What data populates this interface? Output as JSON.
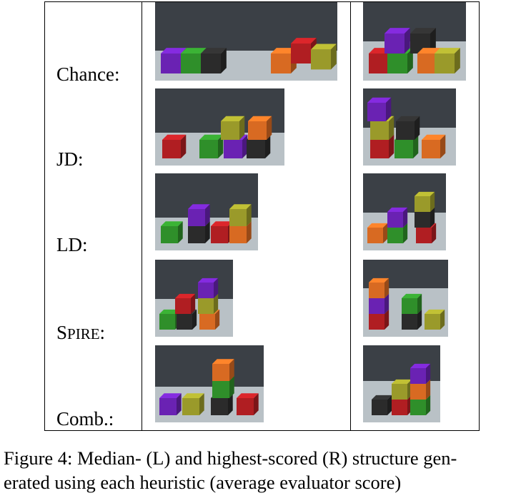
{
  "figure": {
    "rows": [
      {
        "key": "chance",
        "label": "Chance:",
        "median_image": {
          "description": "blocks scene",
          "cubes": [
            {
              "color": "#6a22b3"
            },
            {
              "color": "#2f8f2a"
            },
            {
              "color": "#2b2b2b"
            },
            {
              "color": "#d86a22"
            },
            {
              "color": "#b01e22"
            },
            {
              "color": "#9a9a2a"
            }
          ]
        },
        "highest_image": {
          "description": "blocks scene",
          "cubes": [
            {
              "color": "#b01e22"
            },
            {
              "color": "#2f8f2a"
            },
            {
              "color": "#6a22b3"
            },
            {
              "color": "#2b2b2b"
            },
            {
              "color": "#d86a22"
            },
            {
              "color": "#9a9a2a"
            }
          ]
        }
      },
      {
        "key": "jd",
        "label": "JD:",
        "median_image": {
          "cubes": [
            {
              "color": "#b01e22"
            },
            {
              "color": "#2f8f2a"
            },
            {
              "color": "#6a22b3"
            },
            {
              "color": "#9a9a2a"
            },
            {
              "color": "#2b2b2b"
            },
            {
              "color": "#d86a22"
            }
          ]
        },
        "highest_image": {
          "cubes": [
            {
              "color": "#b01e22"
            },
            {
              "color": "#9a9a2a"
            },
            {
              "color": "#6a22b3"
            },
            {
              "color": "#2f8f2a"
            },
            {
              "color": "#2b2b2b"
            },
            {
              "color": "#d86a22"
            }
          ]
        }
      },
      {
        "key": "ld",
        "label": "LD:",
        "median_image": {
          "cubes": [
            {
              "color": "#2f8f2a"
            },
            {
              "color": "#2b2b2b"
            },
            {
              "color": "#6a22b3"
            },
            {
              "color": "#b01e22"
            },
            {
              "color": "#d86a22"
            },
            {
              "color": "#9a9a2a"
            }
          ]
        },
        "highest_image": {
          "cubes": [
            {
              "color": "#d86a22"
            },
            {
              "color": "#2f8f2a"
            },
            {
              "color": "#6a22b3"
            },
            {
              "color": "#b01e22"
            },
            {
              "color": "#2b2b2b"
            },
            {
              "color": "#9a9a2a"
            }
          ]
        }
      },
      {
        "key": "spire",
        "label_first": "S",
        "label_rest": "PIRE",
        "label_tail": ":",
        "median_image": {
          "cubes": [
            {
              "color": "#2f8f2a"
            },
            {
              "color": "#2b2b2b"
            },
            {
              "color": "#b01e22"
            },
            {
              "color": "#d86a22"
            },
            {
              "color": "#9a9a2a"
            },
            {
              "color": "#6a22b3"
            }
          ]
        },
        "highest_image": {
          "cubes": [
            {
              "color": "#b01e22"
            },
            {
              "color": "#6a22b3"
            },
            {
              "color": "#d86a22"
            },
            {
              "color": "#2b2b2b"
            },
            {
              "color": "#2f8f2a"
            },
            {
              "color": "#9a9a2a"
            }
          ]
        }
      },
      {
        "key": "comb",
        "label": "Comb.:",
        "median_image": {
          "cubes": [
            {
              "color": "#6a22b3"
            },
            {
              "color": "#9a9a2a"
            },
            {
              "color": "#2b2b2b"
            },
            {
              "color": "#2f8f2a"
            },
            {
              "color": "#d86a22"
            },
            {
              "color": "#b01e22"
            }
          ]
        },
        "highest_image": {
          "cubes": [
            {
              "color": "#2b2b2b"
            },
            {
              "color": "#b01e22"
            },
            {
              "color": "#2f8f2a"
            },
            {
              "color": "#9a9a2a"
            },
            {
              "color": "#d86a22"
            },
            {
              "color": "#6a22b3"
            }
          ]
        }
      }
    ],
    "caption_line1": "Figure 4: Median- (L) and highest-scored (R) structure gen-",
    "caption_line2": "erated using each heuristic (average evaluator score)"
  },
  "colors": {
    "purple": "#6a22b3",
    "green": "#2f8f2a",
    "black": "#2b2b2b",
    "orange": "#d86a22",
    "red": "#b01e22",
    "yellow": "#9a9a2a",
    "floor": "#b9c1c6",
    "wall": "#3b4046"
  }
}
